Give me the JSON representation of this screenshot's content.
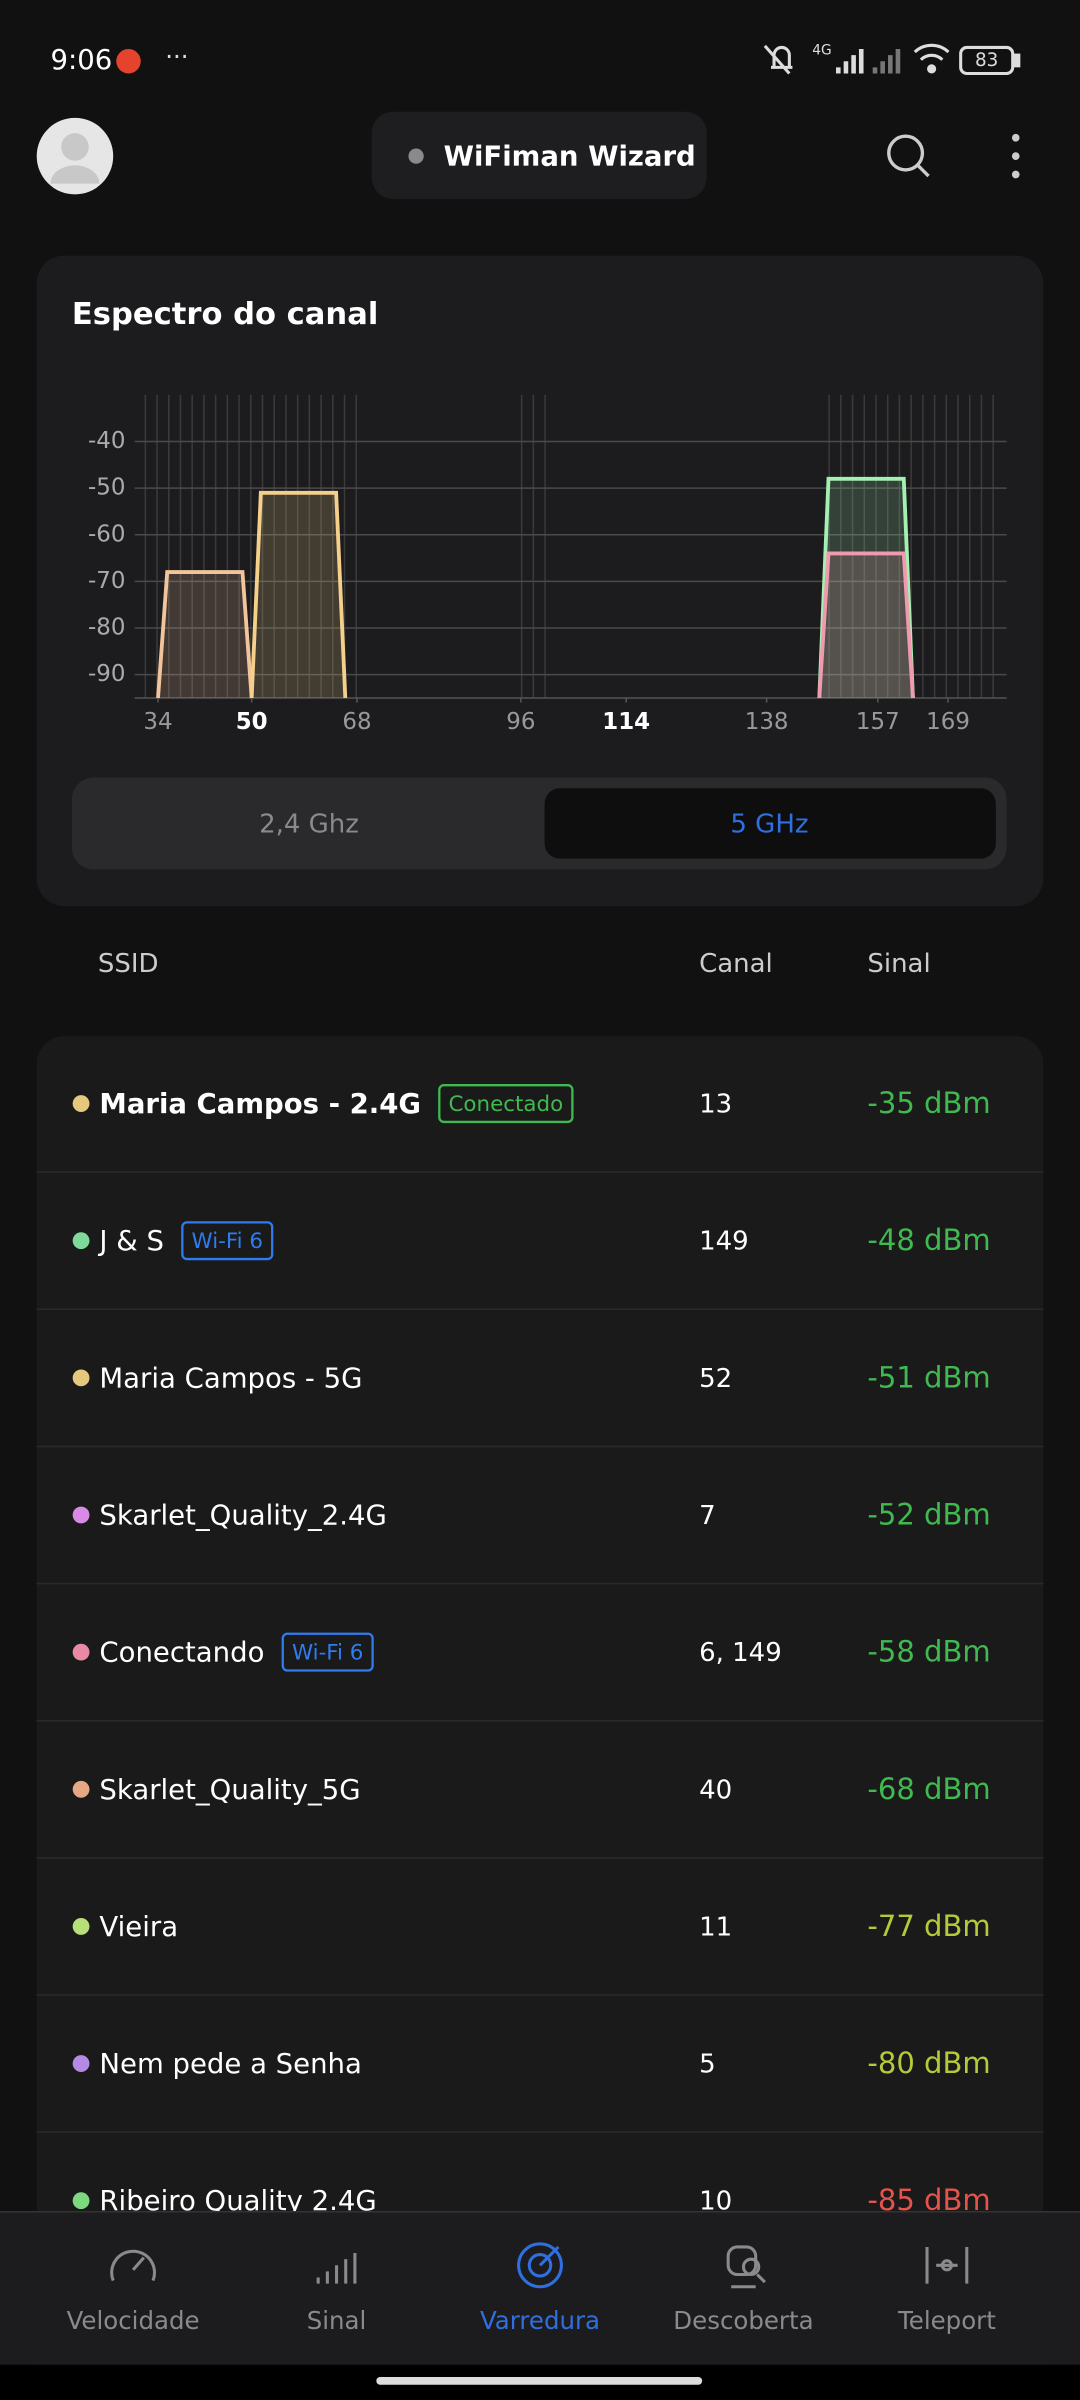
{
  "status_bar": {
    "time": "9:06",
    "network": "4G",
    "battery": "83"
  },
  "header": {
    "title": "WiFiman Wizard"
  },
  "spectrum": {
    "title": "Espectro do canal",
    "ylim": [
      -95,
      -30
    ],
    "yticks": [
      -40,
      -50,
      -60,
      -70,
      -80,
      -90
    ],
    "xlim": [
      30,
      179
    ],
    "xticks": [
      34,
      50,
      68,
      96,
      114,
      138,
      157,
      169
    ],
    "traces": [
      {
        "color": "#f2c49b",
        "start": 34,
        "end": 50,
        "level": -68
      },
      {
        "color": "#f5d08a",
        "start": 50,
        "end": 66,
        "level": -51
      },
      {
        "color": "#a4f0b0",
        "start": 147,
        "end": 163,
        "level": -48
      },
      {
        "color": "#f09ab0",
        "start": 147,
        "end": 163,
        "level": -64
      }
    ],
    "bands": [
      "2,4 Ghz",
      "5 GHz"
    ]
  },
  "list": {
    "columns": [
      "SSID",
      "Canal",
      "Sinal"
    ],
    "networks": [
      {
        "name": "Maria Campos - 2.4G",
        "color": "#e6c77e",
        "badge": {
          "text": "Conectado",
          "color": "#3fb950"
        },
        "channel": "13",
        "signal": "-35 dBm",
        "signal_color": "#3fb950"
      },
      {
        "name": "J & S",
        "color": "#7ed99a",
        "badge": {
          "text": "Wi-Fi 6",
          "color": "#2f7bf0"
        },
        "channel": "149",
        "signal": "-48 dBm",
        "signal_color": "#3fb950"
      },
      {
        "name": "Maria Campos - 5G",
        "color": "#e6c77e",
        "channel": "52",
        "signal": "-51 dBm",
        "signal_color": "#3fb950"
      },
      {
        "name": "Skarlet_Quality_2.4G",
        "color": "#d88ae6",
        "channel": "7",
        "signal": "-52 dBm",
        "signal_color": "#3fb950"
      },
      {
        "name": "Conectando",
        "color": "#e88aa6",
        "badge": {
          "text": "Wi-Fi 6",
          "color": "#2f7bf0"
        },
        "channel": "6, 149",
        "signal": "-58 dBm",
        "signal_color": "#3fb950"
      },
      {
        "name": "Skarlet_Quality_5G",
        "color": "#e6a883",
        "channel": "40",
        "signal": "-68 dBm",
        "signal_color": "#3fb950"
      },
      {
        "name": "Vieira",
        "color": "#b8e07a",
        "channel": "11",
        "signal": "-77 dBm",
        "signal_color": "#b5c93a"
      },
      {
        "name": "Nem pede a Senha",
        "color": "#b48ae6",
        "channel": "5",
        "signal": "-80 dBm",
        "signal_color": "#b5c93a"
      },
      {
        "name": "Ribeiro Quality 2.4G",
        "color": "#7ed97e",
        "channel": "10",
        "signal": "-85 dBm",
        "signal_color": "#e5534b"
      }
    ]
  },
  "nav": {
    "items": [
      "Velocidade",
      "Sinal",
      "Varredura",
      "Descoberta",
      "Teleport"
    ]
  }
}
